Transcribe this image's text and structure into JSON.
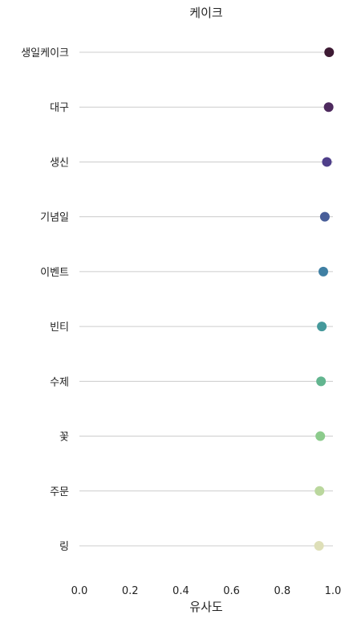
{
  "chart_data": {
    "type": "scatter",
    "title": "케이크",
    "xlabel": "유사도",
    "ylabel": "",
    "xlim": [
      0.0,
      1.0
    ],
    "xticks": [
      0.0,
      0.2,
      0.4,
      0.6,
      0.8,
      1.0
    ],
    "xtick_labels": [
      "0.0",
      "0.2",
      "0.4",
      "0.6",
      "0.8",
      "1.0"
    ],
    "grid": "horizontal lines per category",
    "categories": [
      "생일케이크",
      "대구",
      "생신",
      "기념일",
      "이벤트",
      "빈티",
      "수제",
      "꽃",
      "주문",
      "링"
    ],
    "values": [
      0.985,
      0.983,
      0.976,
      0.968,
      0.962,
      0.956,
      0.953,
      0.95,
      0.947,
      0.945
    ],
    "colors": [
      "#3d1a33",
      "#4e2a5e",
      "#4f3f8a",
      "#485e99",
      "#3f7fa3",
      "#45999b",
      "#62b58f",
      "#8ccb8c",
      "#bad79d",
      "#dedfb8"
    ]
  }
}
